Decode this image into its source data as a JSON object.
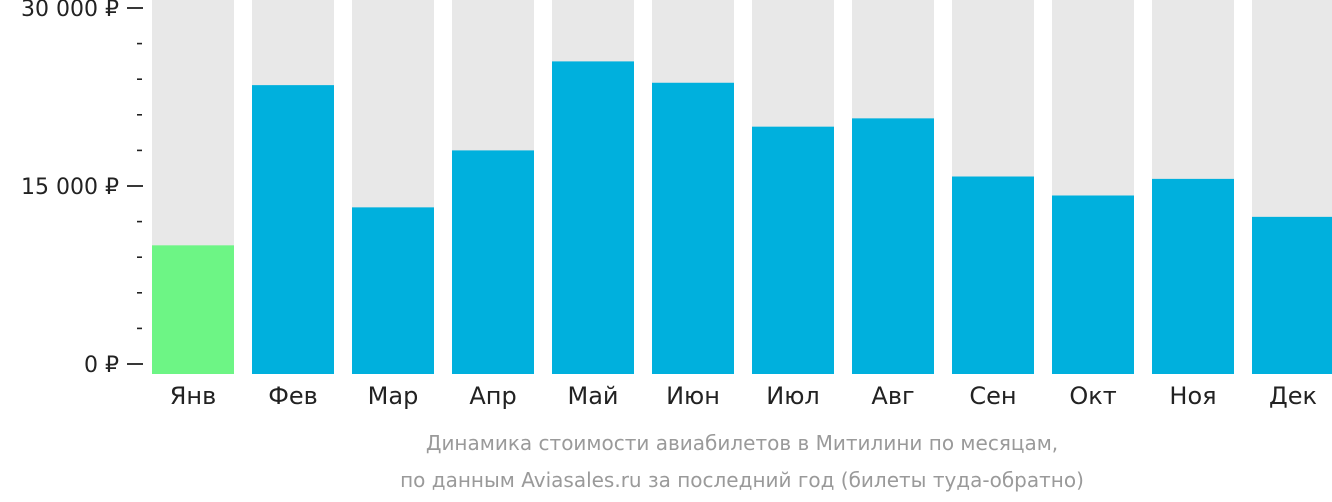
{
  "chart_data": {
    "type": "bar",
    "categories": [
      "Янв",
      "Фев",
      "Мар",
      "Апр",
      "Май",
      "Июн",
      "Июл",
      "Авг",
      "Сен",
      "Окт",
      "Ноя",
      "Дек"
    ],
    "values": [
      10000,
      23500,
      13200,
      18000,
      25500,
      23700,
      20000,
      20700,
      15800,
      14200,
      15600,
      12400
    ],
    "highlight_index": 0,
    "ylim": [
      0,
      30000
    ],
    "y_ticks": [
      {
        "value": 0,
        "label": "0 ₽"
      },
      {
        "value": 15000,
        "label": "15 000 ₽"
      },
      {
        "value": 30000,
        "label": "30 000 ₽"
      }
    ],
    "y_minor_step": 3000,
    "caption_line1": "Динамика стоимости авиабилетов в Митилини по месяцам,",
    "caption_line2": "по данным Aviasales.ru за последний год (билеты туда-обратно)",
    "colors": {
      "bar": "#00b0dd",
      "highlight": "#6df585",
      "track": "#e8e8e8",
      "axis": "#222222",
      "caption": "#9a9a9a"
    }
  }
}
